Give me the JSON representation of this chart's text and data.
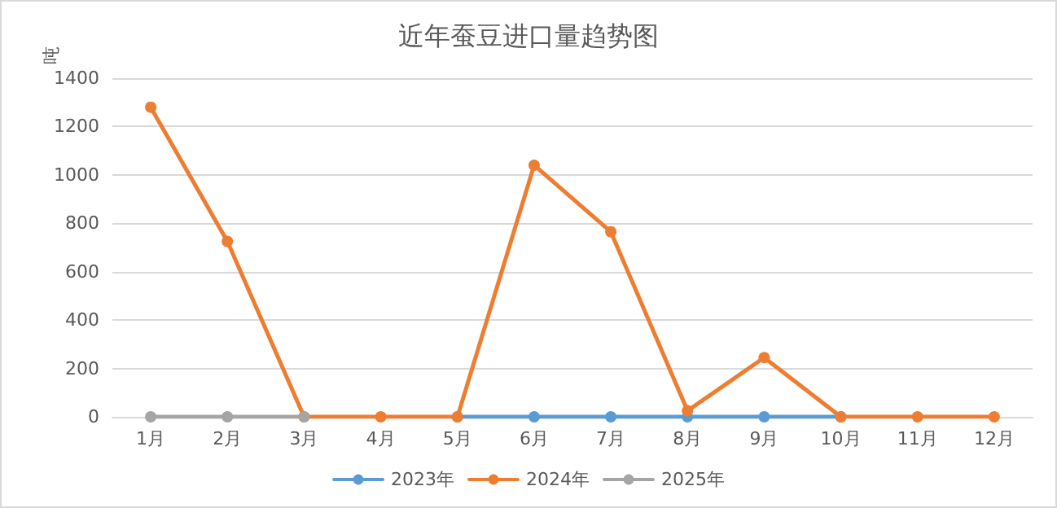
{
  "chart_data": {
    "type": "line",
    "title": "近年蚕豆进口量趋势图",
    "ylabel": "吨",
    "categories": [
      "1月",
      "2月",
      "3月",
      "4月",
      "5月",
      "6月",
      "7月",
      "8月",
      "9月",
      "10月",
      "11月",
      "12月"
    ],
    "series": [
      {
        "name": "2023年",
        "color": "#5b9bd5",
        "values": [
          null,
          null,
          null,
          null,
          0,
          0,
          0,
          0,
          0,
          0,
          null,
          null
        ]
      },
      {
        "name": "2024年",
        "color": "#ed7d31",
        "values": [
          1280,
          725,
          0,
          0,
          0,
          1040,
          765,
          25,
          245,
          0,
          0,
          0
        ]
      },
      {
        "name": "2025年",
        "color": "#a5a5a5",
        "values": [
          0,
          0,
          0,
          null,
          null,
          null,
          null,
          null,
          null,
          null,
          null,
          null
        ]
      }
    ],
    "ylim": [
      0,
      1400
    ],
    "yticks": [
      0,
      200,
      400,
      600,
      800,
      1000,
      1200,
      1400
    ],
    "grid": "y",
    "legend": "bottom",
    "marker": "circle",
    "line_style": "solid"
  }
}
